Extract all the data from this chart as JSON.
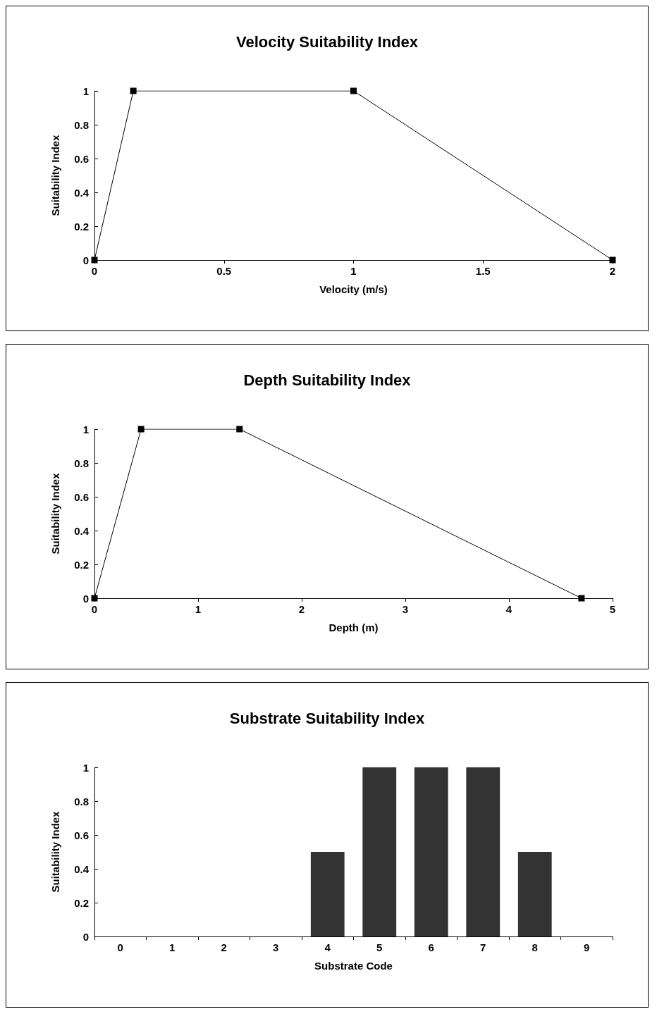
{
  "chart_data": [
    {
      "type": "line",
      "title": "Velocity Suitability Index",
      "xlabel": "Velocity (m/s)",
      "ylabel": "Suitability Index",
      "x": [
        0,
        0.15,
        1,
        2
      ],
      "values": [
        0,
        1,
        1,
        0
      ],
      "color": "#000000",
      "marker": "square",
      "xlim": [
        0,
        2
      ],
      "xticks": [
        0,
        0.5,
        1,
        1.5,
        2
      ],
      "ylim": [
        0,
        1
      ],
      "yticks": [
        0,
        0.2,
        0.4,
        0.6,
        0.8,
        1
      ]
    },
    {
      "type": "line",
      "title": "Depth Suitability Index",
      "xlabel": "Depth (m)",
      "ylabel": "Suitability Index",
      "x": [
        0,
        0.45,
        1.4,
        4.7
      ],
      "values": [
        0,
        1,
        1,
        0
      ],
      "color": "#000000",
      "marker": "square",
      "xlim": [
        0,
        5
      ],
      "xticks": [
        0,
        1,
        2,
        3,
        4,
        5
      ],
      "ylim": [
        0,
        1
      ],
      "yticks": [
        0,
        0.2,
        0.4,
        0.6,
        0.8,
        1
      ]
    },
    {
      "type": "bar",
      "title": "Substrate Suitability Index",
      "xlabel": "Substrate Code",
      "ylabel": "Suitability Index",
      "categories": [
        "0",
        "1",
        "2",
        "3",
        "4",
        "5",
        "6",
        "7",
        "8",
        "9"
      ],
      "values": [
        0,
        0,
        0,
        0,
        0.5,
        1,
        1,
        1,
        0.5,
        0
      ],
      "color": "#333333",
      "ylim": [
        0,
        1
      ],
      "yticks": [
        0,
        0.2,
        0.4,
        0.6,
        0.8,
        1
      ]
    }
  ]
}
